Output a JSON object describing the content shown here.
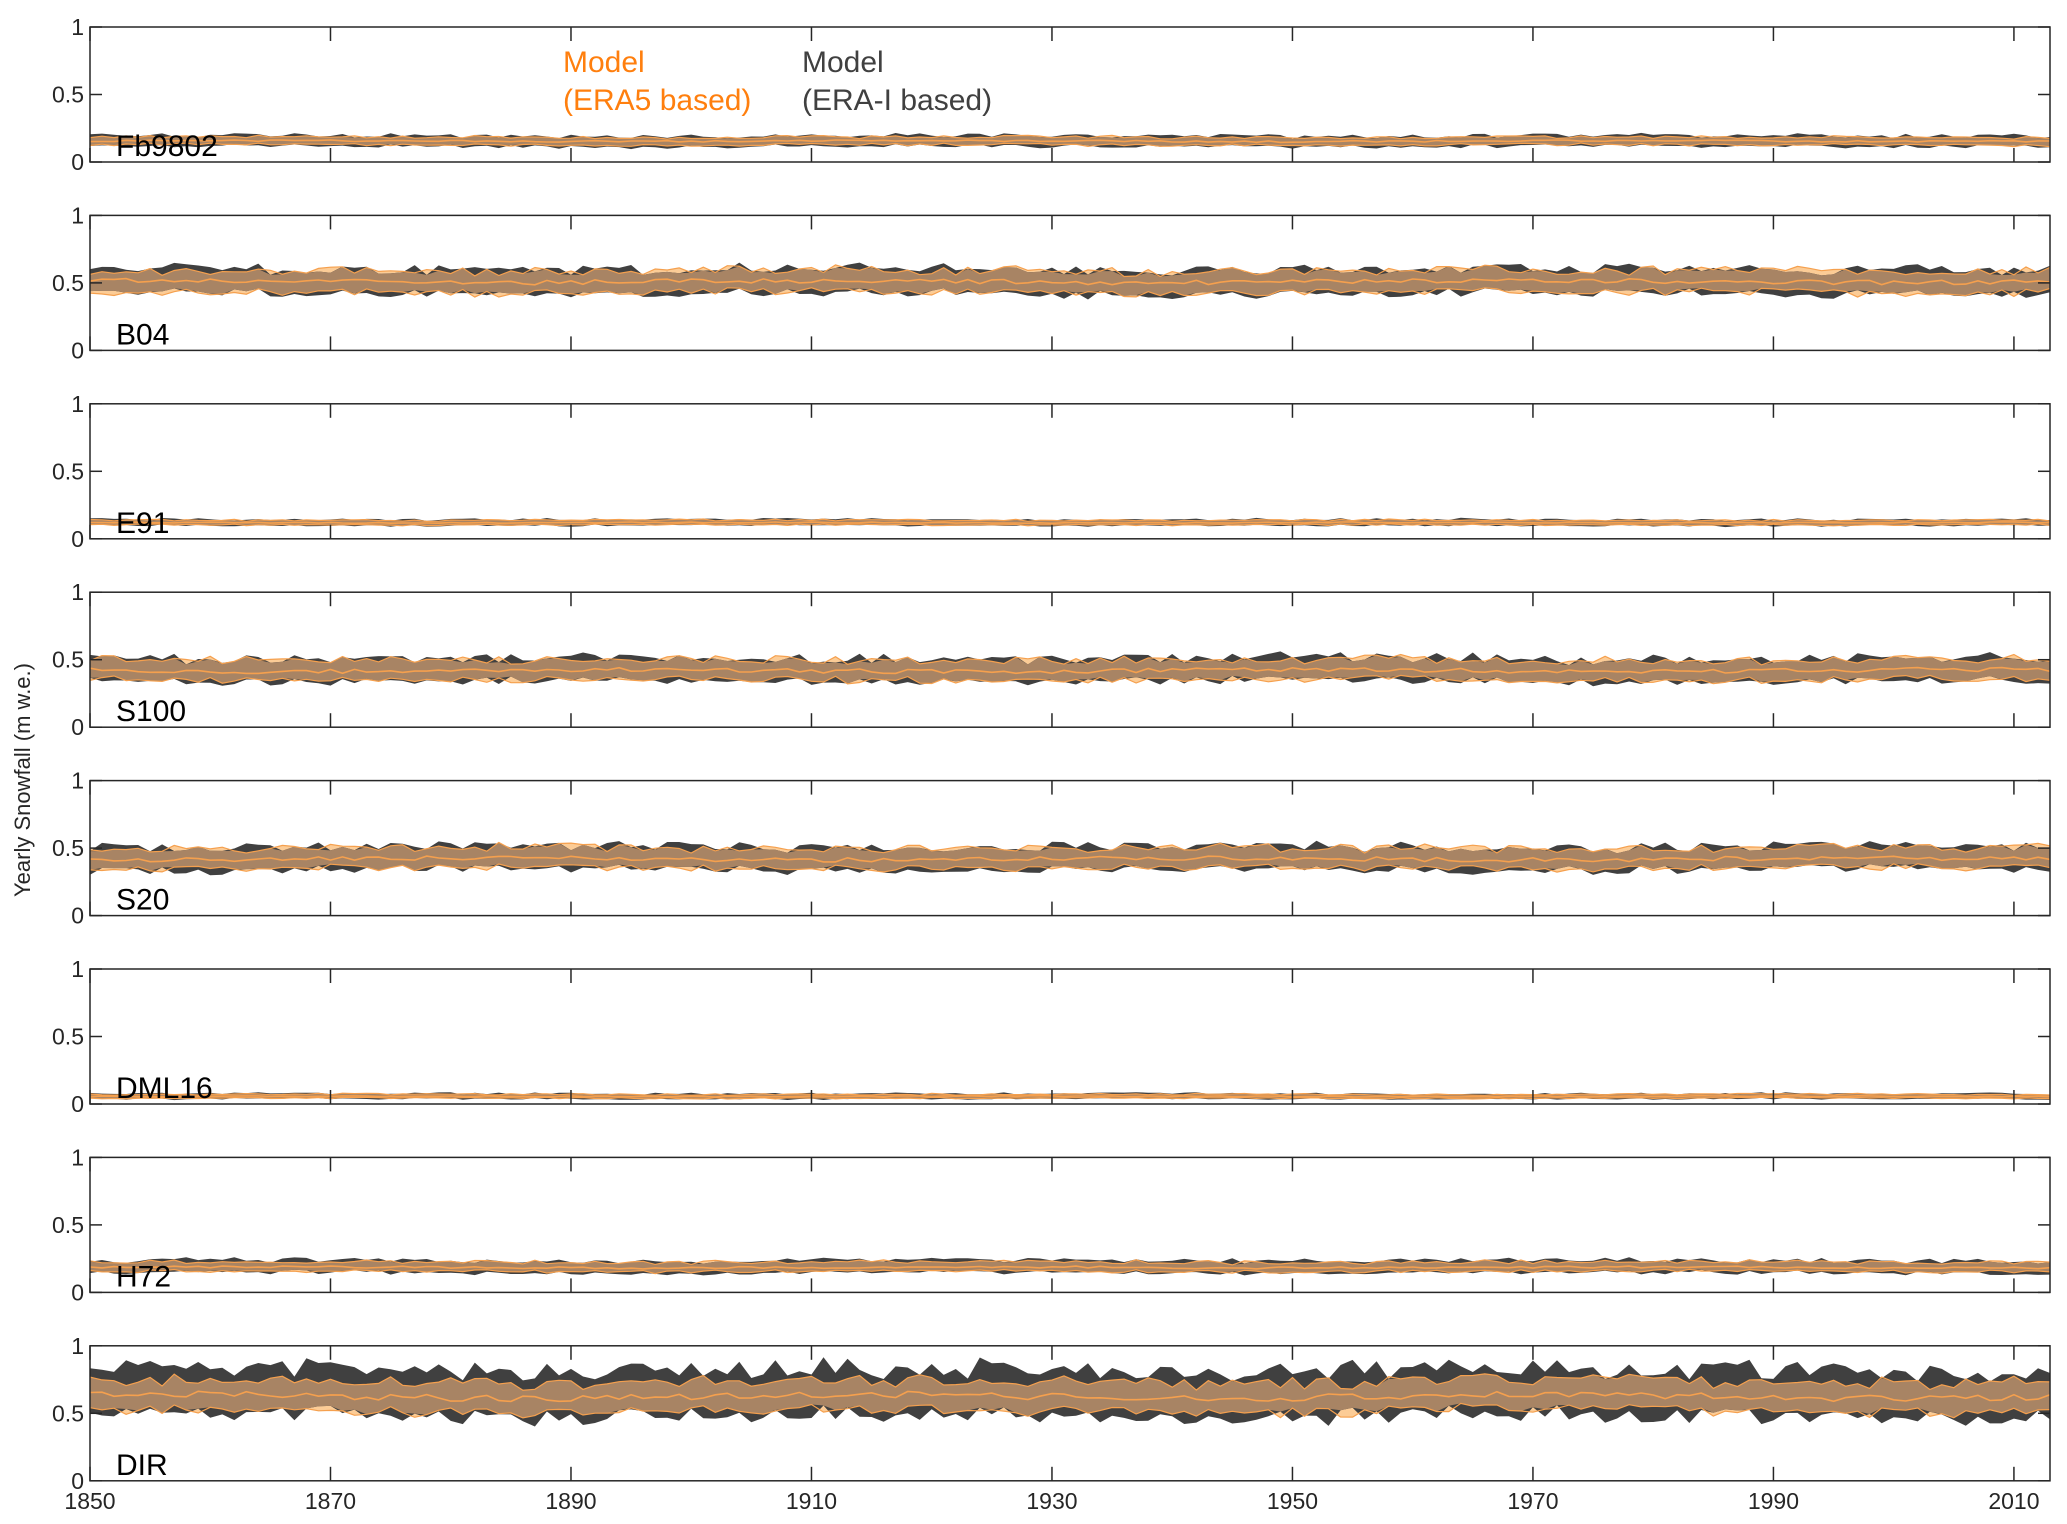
{
  "chart_data": {
    "type": "area",
    "ylabel": "Yearly Snowfall (m w.e.)",
    "xlim": [
      1850,
      2013
    ],
    "x_ticks": [
      1850,
      1870,
      1890,
      1910,
      1930,
      1950,
      1970,
      1990,
      2010
    ],
    "x_tick_labels": [
      "1850",
      "1870",
      "1890",
      "1910",
      "1930",
      "1950",
      "1970",
      "1990",
      "2010"
    ],
    "ylim": [
      0,
      1
    ],
    "y_ticks": [
      0,
      0.5,
      1
    ],
    "y_tick_labels": [
      "0",
      "0.5",
      "1"
    ],
    "grid": false,
    "legend": {
      "placement": "top-inside-first-panel",
      "entries": [
        {
          "line1": "Model",
          "line2": "(ERA5 based)",
          "color": "#ff7f0e"
        },
        {
          "line1": "Model",
          "line2": "(ERA-I based)",
          "color": "#404040"
        }
      ]
    },
    "series_colors": {
      "era5_fill": "#fcc990",
      "era5_line": "#f5a04e",
      "erai_fill": "#404040",
      "overlap_fill": "#a88464"
    },
    "panels": [
      {
        "station": "Fb9802",
        "erai_low": 0.12,
        "erai_high": 0.19,
        "era5_low": 0.13,
        "era5_high": 0.18,
        "era5_mean": 0.155
      },
      {
        "station": "B04",
        "erai_low": 0.43,
        "erai_high": 0.59,
        "era5_low": 0.44,
        "era5_high": 0.58,
        "era5_mean": 0.51
      },
      {
        "station": "E91",
        "erai_low": 0.1,
        "erai_high": 0.14,
        "era5_low": 0.105,
        "era5_high": 0.135,
        "era5_mean": 0.12
      },
      {
        "station": "S100",
        "erai_low": 0.35,
        "erai_high": 0.5,
        "era5_low": 0.36,
        "era5_high": 0.49,
        "era5_mean": 0.42
      },
      {
        "station": "S20",
        "erai_low": 0.35,
        "erai_high": 0.5,
        "era5_low": 0.36,
        "era5_high": 0.49,
        "era5_mean": 0.42
      },
      {
        "station": "DML16",
        "erai_low": 0.04,
        "erai_high": 0.075,
        "era5_low": 0.045,
        "era5_high": 0.07,
        "era5_mean": 0.057
      },
      {
        "station": "H72",
        "erai_low": 0.15,
        "erai_high": 0.23,
        "era5_low": 0.16,
        "era5_high": 0.22,
        "era5_mean": 0.185
      },
      {
        "station": "DIR",
        "erai_low": 0.5,
        "erai_high": 0.8,
        "era5_low": 0.53,
        "era5_high": 0.72,
        "era5_mean": 0.625
      }
    ]
  }
}
